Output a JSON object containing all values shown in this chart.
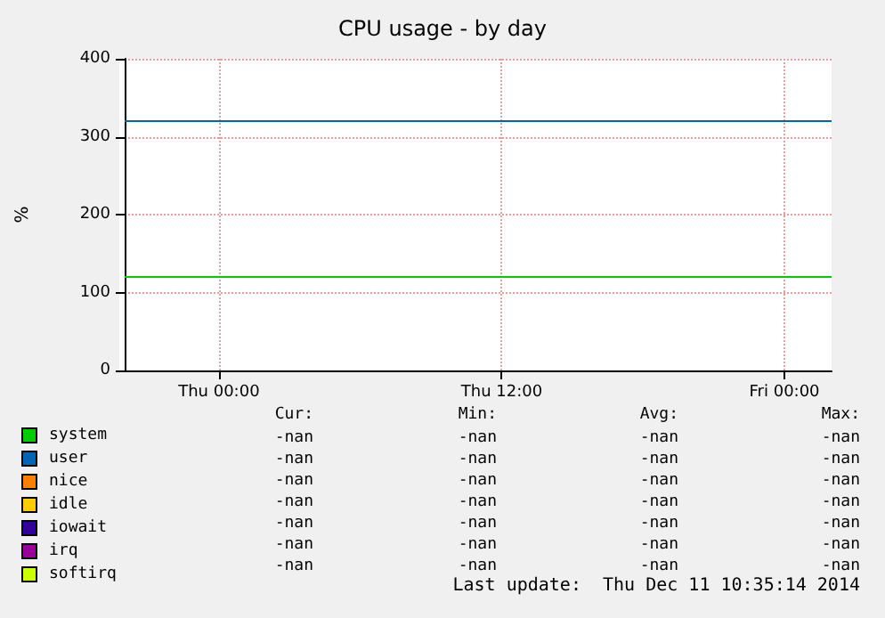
{
  "chart_data": {
    "type": "line",
    "title": "CPU usage - by day",
    "ylabel": "%",
    "x": [
      "2014-12-10T20:00",
      "2014-12-12T02:00"
    ],
    "xlim": [
      "2014-12-10T20:00",
      "2014-12-12T02:00"
    ],
    "xticks": [
      {
        "value": "2014-12-11T00:00",
        "label": "Thu 00:00"
      },
      {
        "value": "2014-12-11T12:00",
        "label": "Thu 12:00"
      },
      {
        "value": "2014-12-12T00:00",
        "label": "Fri 00:00"
      }
    ],
    "ylim": [
      0,
      400
    ],
    "yticks": [
      0,
      100,
      200,
      300,
      400
    ],
    "grid": true,
    "legend": "bottom left",
    "marker": "none",
    "line_style": "solid",
    "series": [
      {
        "name": "system",
        "color": "#00cc00",
        "values": [
          120,
          120
        ]
      },
      {
        "name": "user",
        "color": "#0066b3",
        "values": [
          320,
          320
        ]
      },
      {
        "name": "nice",
        "color": "#ff8000",
        "values": [
          null,
          null
        ]
      },
      {
        "name": "idle",
        "color": "#ffcc00",
        "values": [
          null,
          null
        ]
      },
      {
        "name": "iowait",
        "color": "#330099",
        "values": [
          null,
          null
        ]
      },
      {
        "name": "irq",
        "color": "#990099",
        "values": [
          null,
          null
        ]
      },
      {
        "name": "softirq",
        "color": "#ccff00",
        "values": [
          null,
          null
        ]
      }
    ],
    "annotations": [
      "Cur:",
      "Min:",
      "Avg:",
      "Max:",
      "-nan",
      "-nan",
      "-nan",
      "-nan",
      "-nan",
      "-nan",
      "-nan",
      "-nan",
      "-nan",
      "-nan",
      "-nan",
      "-nan",
      "-nan",
      "-nan",
      "-nan",
      "-nan",
      "-nan",
      "-nan",
      "-nan",
      "-nan",
      "-nan",
      "-nan",
      "-nan",
      "-nan",
      "-nan",
      "-nan",
      "-nan",
      "-nan",
      "Last update:  Thu Dec 11 10:35:14 2014"
    ]
  }
}
